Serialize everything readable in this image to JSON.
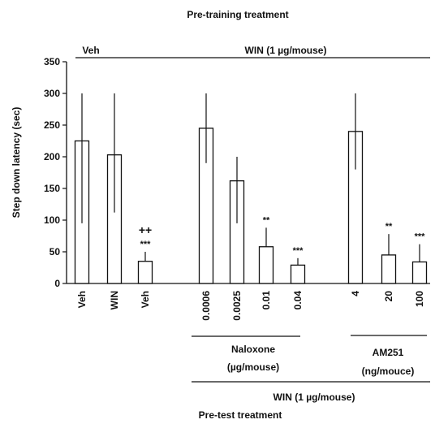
{
  "chart_data": {
    "type": "bar",
    "title": "Pre-training treatment",
    "xlabel": "Pre-test treatment",
    "ylabel": "Step down latency (sec)",
    "ylim": [
      0,
      350
    ],
    "yticks": [
      0,
      50,
      100,
      150,
      200,
      250,
      300,
      350
    ],
    "grid": false,
    "categories": [
      "Veh",
      "WIN",
      "Veh",
      "0.0006",
      "0.0025",
      "0.01",
      "0.04",
      "4",
      "20",
      "100"
    ],
    "values": [
      225,
      203,
      35,
      245,
      162,
      58,
      29,
      240,
      45,
      34
    ],
    "error_upper": [
      300,
      300,
      50,
      300,
      200,
      88,
      40,
      300,
      78,
      62
    ],
    "error_lower": [
      95,
      112,
      35,
      190,
      95,
      58,
      29,
      180,
      45,
      34
    ],
    "significance": [
      "",
      "",
      "***",
      "",
      "",
      "**",
      "***",
      "",
      "**",
      "***"
    ],
    "extra_marks": [
      "",
      "",
      "++",
      "",
      "",
      "",
      "",
      "",
      "",
      ""
    ],
    "pretraining_groups": [
      {
        "label": "Veh",
        "from": 0,
        "to": 0
      },
      {
        "label": "WIN (1 µg/mouse)",
        "from": 1,
        "to": 9
      }
    ],
    "pretest_groups": [
      {
        "label": "Naloxone",
        "sublabel": "(µg/mouse)",
        "from": 3,
        "to": 6
      },
      {
        "label": "AM251",
        "sublabel": "(ng/mouce)",
        "from": 7,
        "to": 9
      }
    ],
    "pretest_win_label": "WIN (1 µg/mouse)"
  }
}
